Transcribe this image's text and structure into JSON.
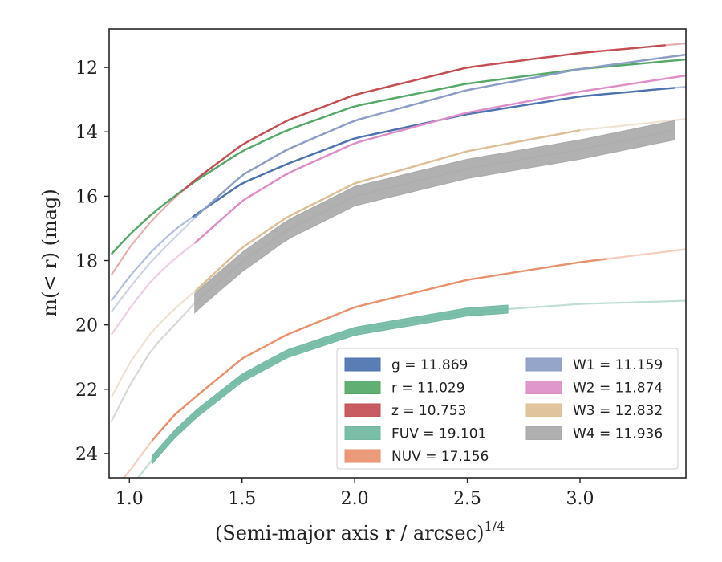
{
  "chart_data": {
    "type": "line",
    "xlabel": "(Semi-major axis r / arcsec)",
    "xlabel_exponent": "1/4",
    "ylabel": "m(< r) (mag)",
    "xlim": [
      0.91,
      3.47
    ],
    "ylim": [
      24.75,
      10.8
    ],
    "y_inverted": true,
    "xticks": [
      1.0,
      1.5,
      2.0,
      2.5,
      3.0
    ],
    "xtick_labels": [
      "1.0",
      "1.5",
      "2.0",
      "2.5",
      "3.0"
    ],
    "yticks": [
      12,
      14,
      16,
      18,
      20,
      22,
      24
    ],
    "ytick_labels": [
      "12",
      "14",
      "16",
      "18",
      "20",
      "22",
      "24"
    ],
    "grid": false,
    "legend_location": "lower-right",
    "legend_columns": 2,
    "legend": [
      {
        "label": "g = 11.869",
        "color": "#4c72b0"
      },
      {
        "label": "W1 = 11.159",
        "color": "#8c9dc6"
      },
      {
        "label": "r = 11.029",
        "color": "#55a868"
      },
      {
        "label": "W2 = 11.874",
        "color": "#dd8ec6"
      },
      {
        "label": "z = 10.753",
        "color": "#c44e52"
      },
      {
        "label": "W3 = 12.832",
        "color": "#ddbf96"
      },
      {
        "label": "FUV = 19.101",
        "color": "#6fb8a1"
      },
      {
        "label": "W4 = 11.936",
        "color": "#a9a9a9"
      },
      {
        "label": "NUV = 17.156",
        "color": "#e8916d"
      }
    ],
    "series": [
      {
        "name": "g",
        "color": "#4c72b0",
        "solid_range": [
          1.28,
          3.42
        ],
        "x": [
          0.92,
          1.0,
          1.1,
          1.2,
          1.3,
          1.5,
          1.7,
          2.0,
          2.5,
          3.0,
          3.47
        ],
        "y": [
          19.25,
          18.5,
          17.7,
          17.05,
          16.55,
          15.6,
          15.0,
          14.2,
          13.45,
          12.9,
          12.6
        ]
      },
      {
        "name": "r",
        "color": "#55a868",
        "solid_range": [
          0.92,
          3.47
        ],
        "x": [
          0.92,
          1.0,
          1.1,
          1.2,
          1.3,
          1.5,
          1.7,
          2.0,
          2.5,
          3.0,
          3.47
        ],
        "y": [
          17.8,
          17.2,
          16.55,
          16.0,
          15.5,
          14.6,
          13.95,
          13.2,
          12.5,
          12.05,
          11.75
        ]
      },
      {
        "name": "z",
        "color": "#c44e52",
        "solid_range": [
          1.24,
          3.38
        ],
        "x": [
          0.92,
          1.0,
          1.1,
          1.2,
          1.3,
          1.5,
          1.7,
          2.0,
          2.5,
          3.0,
          3.47
        ],
        "y": [
          18.45,
          17.6,
          16.75,
          16.05,
          15.45,
          14.4,
          13.65,
          12.85,
          12.0,
          11.55,
          11.25
        ]
      },
      {
        "name": "W1",
        "color": "#8c9dc6",
        "solid_range": [
          1.29,
          3.47
        ],
        "x": [
          0.92,
          1.0,
          1.1,
          1.2,
          1.3,
          1.5,
          1.7,
          2.0,
          2.5,
          3.0,
          3.47
        ],
        "y": [
          19.6,
          18.85,
          18.0,
          17.3,
          16.6,
          15.35,
          14.55,
          13.65,
          12.7,
          12.05,
          11.6
        ]
      },
      {
        "name": "W2",
        "color": "#dd8ec6",
        "solid_range": [
          1.29,
          3.47
        ],
        "x": [
          0.92,
          1.0,
          1.1,
          1.2,
          1.3,
          1.5,
          1.7,
          2.0,
          2.5,
          3.0,
          3.47
        ],
        "y": [
          20.3,
          19.5,
          18.6,
          17.95,
          17.4,
          16.15,
          15.3,
          14.35,
          13.4,
          12.75,
          12.25
        ]
      },
      {
        "name": "W3",
        "color": "#ddbf96",
        "solid_range": [
          1.29,
          3.0
        ],
        "x": [
          0.92,
          1.0,
          1.1,
          1.2,
          1.3,
          1.5,
          1.7,
          2.0,
          2.5,
          3.0,
          3.47
        ],
        "y": [
          22.25,
          21.2,
          20.2,
          19.5,
          18.9,
          17.6,
          16.65,
          15.6,
          14.6,
          13.95,
          13.6
        ]
      },
      {
        "name": "W4",
        "color": "#a9a9a9",
        "solid_range": [
          1.29,
          3.42
        ],
        "band": true,
        "band_width": 0.6,
        "x": [
          0.92,
          1.0,
          1.1,
          1.2,
          1.3,
          1.5,
          1.7,
          2.0,
          2.5,
          3.0,
          3.42
        ],
        "y": [
          23.0,
          21.9,
          20.75,
          20.0,
          19.25,
          18.05,
          17.05,
          16.0,
          15.15,
          14.55,
          13.95
        ]
      },
      {
        "name": "NUV",
        "color": "#e8916d",
        "solid_range": [
          1.1,
          3.12
        ],
        "x": [
          0.92,
          1.0,
          1.1,
          1.2,
          1.3,
          1.5,
          1.7,
          2.0,
          2.5,
          3.0,
          3.47
        ],
        "y": [
          25.2,
          24.55,
          23.6,
          22.8,
          22.2,
          21.05,
          20.3,
          19.45,
          18.6,
          18.05,
          17.65
        ]
      },
      {
        "name": "FUV",
        "color": "#6fb8a1",
        "solid_range": [
          1.1,
          2.68
        ],
        "band": true,
        "band_width": 0.25,
        "x": [
          0.92,
          1.0,
          1.1,
          1.2,
          1.3,
          1.5,
          1.7,
          2.0,
          2.5,
          3.0,
          3.47
        ],
        "y": [
          25.9,
          25.1,
          24.2,
          23.4,
          22.75,
          21.65,
          20.9,
          20.2,
          19.6,
          19.35,
          19.25
        ]
      }
    ]
  }
}
